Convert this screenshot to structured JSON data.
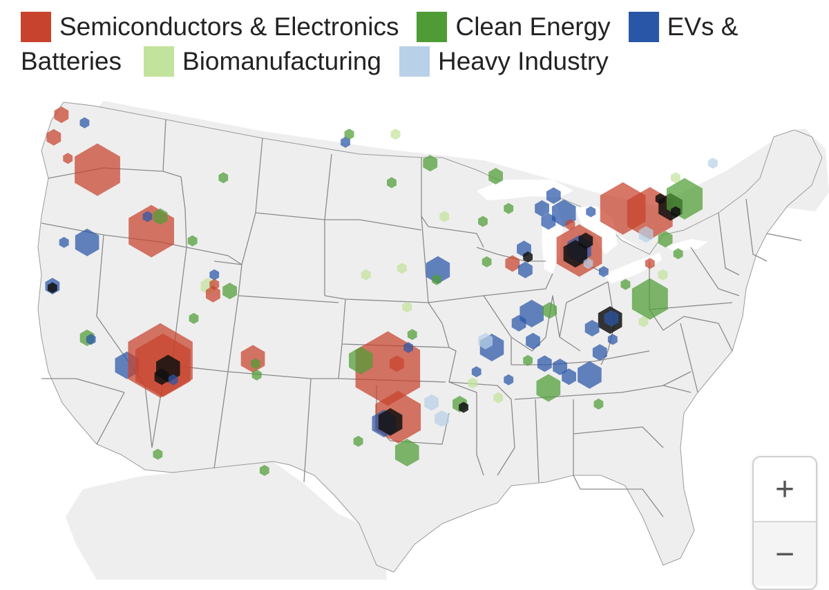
{
  "legend": {
    "items": [
      {
        "key": "semi",
        "label": "Semiconductors & Electronics",
        "color": "#c8432d"
      },
      {
        "key": "clean",
        "label": "Clean Energy",
        "color": "#4f9c36"
      },
      {
        "key": "ev",
        "label": "EVs &",
        "label_cont": "Batteries",
        "color": "#2a56a8"
      },
      {
        "key": "bio",
        "label": "Biomanufacturing",
        "color": "#c2e39b"
      },
      {
        "key": "heavy",
        "label": "Heavy Industry",
        "color": "#b9d1e8"
      }
    ]
  },
  "zoom": {
    "in_label": "+",
    "out_label": "−"
  },
  "map": {
    "land_color": "#eeeeee",
    "border_color": "#8a8a8a",
    "ocean_color": "#ffffff",
    "opacity": 0.72,
    "sites": [
      {
        "lon": -122.3,
        "lat": 48.4,
        "size": 1,
        "cat": "semi"
      },
      {
        "lon": -122.9,
        "lat": 47.0,
        "size": 1,
        "cat": "semi"
      },
      {
        "lon": -120.5,
        "lat": 47.9,
        "size": 0,
        "cat": "ev"
      },
      {
        "lon": -121.8,
        "lat": 45.7,
        "size": 0,
        "cat": "semi"
      },
      {
        "lon": -119.5,
        "lat": 45.0,
        "size": 4,
        "cat": "semi"
      },
      {
        "lon": -122.1,
        "lat": 40.5,
        "size": 0,
        "cat": "ev"
      },
      {
        "lon": -120.3,
        "lat": 40.5,
        "size": 2,
        "cat": "ev"
      },
      {
        "lon": -123.0,
        "lat": 37.8,
        "size": 1,
        "cat": "ev"
      },
      {
        "lon": -123.0,
        "lat": 37.7,
        "size": 0,
        "cat": "dark"
      },
      {
        "lon": -120.3,
        "lat": 34.6,
        "size": 1,
        "cat": "clean"
      },
      {
        "lon": -120.0,
        "lat": 34.5,
        "size": 0,
        "cat": "ev"
      },
      {
        "lon": -117.2,
        "lat": 32.9,
        "size": 2,
        "cat": "ev"
      },
      {
        "lon": -114.6,
        "lat": 33.2,
        "size": 6,
        "cat": "semi"
      },
      {
        "lon": -114.4,
        "lat": 32.9,
        "size": 5,
        "cat": "semi"
      },
      {
        "lon": -114.0,
        "lat": 32.7,
        "size": 2,
        "cat": "dark"
      },
      {
        "lon": -114.5,
        "lat": 32.2,
        "size": 1,
        "cat": "dark"
      },
      {
        "lon": -113.6,
        "lat": 32.0,
        "size": 0,
        "cat": "ev"
      },
      {
        "lon": -115.3,
        "lat": 41.2,
        "size": 4,
        "cat": "semi"
      },
      {
        "lon": -114.6,
        "lat": 42.1,
        "size": 1,
        "cat": "clean"
      },
      {
        "lon": -115.6,
        "lat": 42.1,
        "size": 0,
        "cat": "ev"
      },
      {
        "lon": -109.7,
        "lat": 44.5,
        "size": 0,
        "cat": "clean"
      },
      {
        "lon": -112.1,
        "lat": 40.6,
        "size": 0,
        "cat": "clean"
      },
      {
        "lon": -110.4,
        "lat": 38.5,
        "size": 0,
        "cat": "ev"
      },
      {
        "lon": -110.9,
        "lat": 37.8,
        "size": 1,
        "cat": "bio"
      },
      {
        "lon": -110.4,
        "lat": 37.9,
        "size": 0,
        "cat": "semi"
      },
      {
        "lon": -110.5,
        "lat": 37.3,
        "size": 1,
        "cat": "semi"
      },
      {
        "lon": -109.2,
        "lat": 37.5,
        "size": 1,
        "cat": "clean"
      },
      {
        "lon": -112.0,
        "lat": 35.8,
        "size": 0,
        "cat": "clean"
      },
      {
        "lon": -107.4,
        "lat": 33.3,
        "size": 2,
        "cat": "semi"
      },
      {
        "lon": -107.2,
        "lat": 33.0,
        "size": 0,
        "cat": "clean"
      },
      {
        "lon": -107.1,
        "lat": 32.3,
        "size": 0,
        "cat": "clean"
      },
      {
        "lon": -100.2,
        "lat": 46.7,
        "size": 0,
        "cat": "ev"
      },
      {
        "lon": -99.9,
        "lat": 47.2,
        "size": 0,
        "cat": "clean"
      },
      {
        "lon": -96.3,
        "lat": 47.2,
        "size": 0,
        "cat": "bio"
      },
      {
        "lon": -93.6,
        "lat": 45.4,
        "size": 1,
        "cat": "clean"
      },
      {
        "lon": -96.6,
        "lat": 44.2,
        "size": 0,
        "cat": "clean"
      },
      {
        "lon": -92.5,
        "lat": 42.1,
        "size": 0,
        "cat": "bio"
      },
      {
        "lon": -93.0,
        "lat": 38.8,
        "size": 2,
        "cat": "ev"
      },
      {
        "lon": -93.1,
        "lat": 38.2,
        "size": 0,
        "cat": "clean"
      },
      {
        "lon": -95.8,
        "lat": 38.9,
        "size": 0,
        "cat": "bio"
      },
      {
        "lon": -98.6,
        "lat": 38.5,
        "size": 0,
        "cat": "bio"
      },
      {
        "lon": -95.4,
        "lat": 36.5,
        "size": 0,
        "cat": "bio"
      },
      {
        "lon": -95.0,
        "lat": 34.8,
        "size": 0,
        "cat": "clean"
      },
      {
        "lon": -96.9,
        "lat": 32.7,
        "size": 6,
        "cat": "semi"
      },
      {
        "lon": -99.0,
        "lat": 33.2,
        "size": 2,
        "cat": "clean"
      },
      {
        "lon": -95.3,
        "lat": 34.0,
        "size": 0,
        "cat": "ev"
      },
      {
        "lon": -96.2,
        "lat": 33.0,
        "size": 1,
        "cat": "semi"
      },
      {
        "lon": -96.1,
        "lat": 29.7,
        "size": 4,
        "cat": "semi"
      },
      {
        "lon": -97.2,
        "lat": 29.3,
        "size": 2,
        "cat": "ev"
      },
      {
        "lon": -96.7,
        "lat": 29.4,
        "size": 2,
        "cat": "dark"
      },
      {
        "lon": -95.4,
        "lat": 27.5,
        "size": 2,
        "cat": "clean"
      },
      {
        "lon": -99.2,
        "lat": 28.2,
        "size": 0,
        "cat": "clean"
      },
      {
        "lon": -88.5,
        "lat": 44.6,
        "size": 1,
        "cat": "clean"
      },
      {
        "lon": -89.5,
        "lat": 41.8,
        "size": 0,
        "cat": "clean"
      },
      {
        "lon": -89.2,
        "lat": 39.3,
        "size": 0,
        "cat": "clean"
      },
      {
        "lon": -87.5,
        "lat": 42.6,
        "size": 0,
        "cat": "clean"
      },
      {
        "lon": -87.2,
        "lat": 39.2,
        "size": 1,
        "cat": "semi"
      },
      {
        "lon": -86.3,
        "lat": 40.1,
        "size": 1,
        "cat": "ev"
      },
      {
        "lon": -86.0,
        "lat": 39.6,
        "size": 0,
        "cat": "dark"
      },
      {
        "lon": -86.2,
        "lat": 38.8,
        "size": 1,
        "cat": "ev"
      },
      {
        "lon": -84.9,
        "lat": 42.6,
        "size": 1,
        "cat": "ev"
      },
      {
        "lon": -84.0,
        "lat": 43.4,
        "size": 1,
        "cat": "ev"
      },
      {
        "lon": -83.2,
        "lat": 42.3,
        "size": 2,
        "cat": "ev"
      },
      {
        "lon": -84.4,
        "lat": 41.8,
        "size": 1,
        "cat": "ev"
      },
      {
        "lon": -82.7,
        "lat": 41.6,
        "size": 0,
        "cat": "semi"
      },
      {
        "lon": -82.0,
        "lat": 40.0,
        "size": 4,
        "cat": "semi"
      },
      {
        "lon": -82.0,
        "lat": 40.1,
        "size": 2,
        "cat": "ev"
      },
      {
        "lon": -82.3,
        "lat": 39.8,
        "size": 2,
        "cat": "dark"
      },
      {
        "lon": -81.5,
        "lat": 40.6,
        "size": 1,
        "cat": "dark"
      },
      {
        "lon": -81.3,
        "lat": 39.2,
        "size": 0,
        "cat": "heavy"
      },
      {
        "lon": -80.1,
        "lat": 38.7,
        "size": 0,
        "cat": "ev"
      },
      {
        "lon": -85.7,
        "lat": 36.1,
        "size": 2,
        "cat": "ev"
      },
      {
        "lon": -86.7,
        "lat": 35.5,
        "size": 1,
        "cat": "ev"
      },
      {
        "lon": -85.6,
        "lat": 34.4,
        "size": 1,
        "cat": "ev"
      },
      {
        "lon": -88.8,
        "lat": 34.0,
        "size": 2,
        "cat": "ev"
      },
      {
        "lon": -89.3,
        "lat": 34.4,
        "size": 1,
        "cat": "heavy"
      },
      {
        "lon": -84.3,
        "lat": 36.3,
        "size": 1,
        "cat": "clean"
      },
      {
        "lon": -86.0,
        "lat": 33.2,
        "size": 0,
        "cat": "clean"
      },
      {
        "lon": -84.7,
        "lat": 33.0,
        "size": 1,
        "cat": "ev"
      },
      {
        "lon": -83.5,
        "lat": 32.8,
        "size": 1,
        "cat": "ev"
      },
      {
        "lon": -82.8,
        "lat": 32.2,
        "size": 1,
        "cat": "ev"
      },
      {
        "lon": -84.4,
        "lat": 31.5,
        "size": 2,
        "cat": "clean"
      },
      {
        "lon": -81.2,
        "lat": 32.3,
        "size": 2,
        "cat": "ev"
      },
      {
        "lon": -80.4,
        "lat": 33.7,
        "size": 1,
        "cat": "ev"
      },
      {
        "lon": -79.6,
        "lat": 35.7,
        "size": 2,
        "cat": "dark"
      },
      {
        "lon": -79.5,
        "lat": 35.8,
        "size": 1,
        "cat": "ev"
      },
      {
        "lon": -79.4,
        "lat": 34.5,
        "size": 0,
        "cat": "ev"
      },
      {
        "lon": -81.0,
        "lat": 35.2,
        "size": 1,
        "cat": "ev"
      },
      {
        "lon": -76.5,
        "lat": 37.0,
        "size": 3,
        "cat": "clean"
      },
      {
        "lon": -77.0,
        "lat": 35.6,
        "size": 0,
        "cat": "bio"
      },
      {
        "lon": -78.4,
        "lat": 37.9,
        "size": 0,
        "cat": "clean"
      },
      {
        "lon": -80.5,
        "lat": 30.5,
        "size": 0,
        "cat": "clean"
      },
      {
        "lon": -91.3,
        "lat": 30.5,
        "size": 1,
        "cat": "clean"
      },
      {
        "lon": -91.0,
        "lat": 30.3,
        "size": 0,
        "cat": "dark"
      },
      {
        "lon": -93.5,
        "lat": 30.6,
        "size": 1,
        "cat": "heavy"
      },
      {
        "lon": -92.7,
        "lat": 29.6,
        "size": 1,
        "cat": "heavy"
      },
      {
        "lon": -90.3,
        "lat": 31.8,
        "size": 0,
        "cat": "bio"
      },
      {
        "lon": -88.3,
        "lat": 30.9,
        "size": 0,
        "cat": "bio"
      },
      {
        "lon": -87.5,
        "lat": 32.0,
        "size": 0,
        "cat": "ev"
      },
      {
        "lon": -90.0,
        "lat": 32.5,
        "size": 0,
        "cat": "ev"
      },
      {
        "lon": -78.6,
        "lat": 42.6,
        "size": 4,
        "cat": "semi"
      },
      {
        "lon": -76.5,
        "lat": 42.3,
        "size": 4,
        "cat": "semi"
      },
      {
        "lon": -74.9,
        "lat": 42.7,
        "size": 2,
        "cat": "dark"
      },
      {
        "lon": -73.8,
        "lat": 43.2,
        "size": 3,
        "cat": "clean"
      },
      {
        "lon": -74.5,
        "lat": 42.4,
        "size": 0,
        "cat": "dark"
      },
      {
        "lon": -75.7,
        "lat": 43.2,
        "size": 0,
        "cat": "dark"
      },
      {
        "lon": -76.8,
        "lat": 41.0,
        "size": 1,
        "cat": "heavy"
      },
      {
        "lon": -75.3,
        "lat": 40.7,
        "size": 1,
        "cat": "clean"
      },
      {
        "lon": -74.3,
        "lat": 39.8,
        "size": 0,
        "cat": "clean"
      },
      {
        "lon": -81.1,
        "lat": 42.4,
        "size": 0,
        "cat": "ev"
      },
      {
        "lon": -71.6,
        "lat": 45.4,
        "size": 0,
        "cat": "heavy"
      },
      {
        "lon": -74.5,
        "lat": 44.5,
        "size": 0,
        "cat": "bio"
      },
      {
        "lon": -76.5,
        "lat": 39.2,
        "size": 0,
        "cat": "semi"
      },
      {
        "lon": -75.5,
        "lat": 38.5,
        "size": 0,
        "cat": "bio"
      },
      {
        "lon": -114.8,
        "lat": 27.4,
        "size": 0,
        "cat": "clean"
      },
      {
        "lon": -106.5,
        "lat": 26.4,
        "size": 0,
        "cat": "clean"
      }
    ]
  }
}
